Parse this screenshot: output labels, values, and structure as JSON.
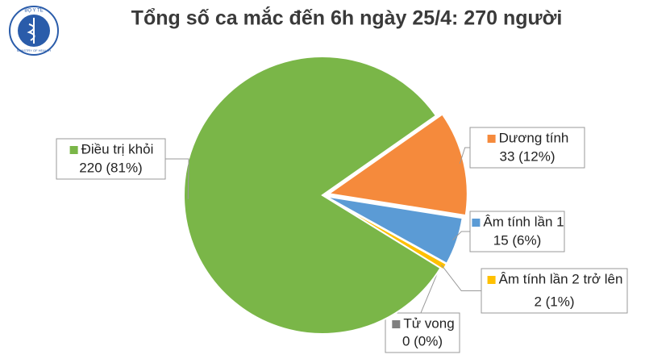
{
  "logo_text": {
    "top": "BỘ Y TẾ",
    "bottom": "MINISTRY OF HEALTH"
  },
  "chart_data": {
    "type": "pie",
    "title": "Tổng số ca mắc đến 6h ngày 25/4: 270 người",
    "categories": [
      "Dương tính",
      "Âm tính lần 1",
      "Âm tính lần 2 trở lên",
      "Tử vong",
      "Điều trị khỏi"
    ],
    "values": [
      33,
      15,
      2,
      0,
      220
    ],
    "value_labels": [
      "33 (12%)",
      "15 (6%)",
      "2 (1%)",
      "0 (0%)",
      "220 (81%)"
    ],
    "colors": [
      "#f58a3c",
      "#5b9bd5",
      "#ffc000",
      "#7f7f7f",
      "#7ab648"
    ]
  }
}
